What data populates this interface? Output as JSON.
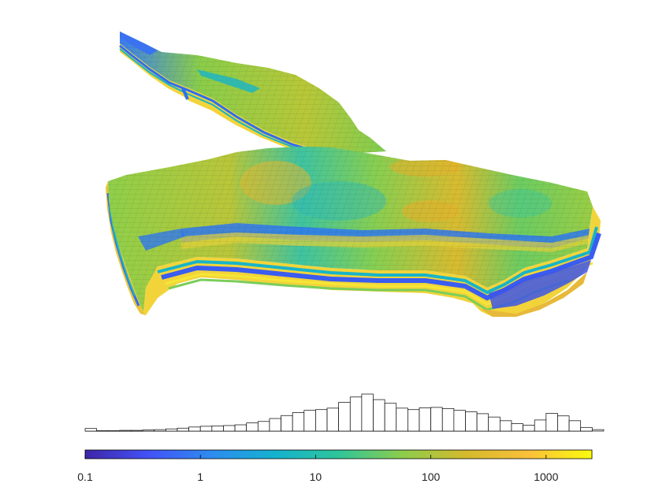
{
  "figure": {
    "description": "3D reservoir grid colored by permeability with histogram and log colorbar",
    "colormap": [
      "#3e26a8",
      "#4352f7",
      "#2d8cf0",
      "#14b2cf",
      "#2fc59a",
      "#8ccd4c",
      "#d4ba2c",
      "#fbc03a",
      "#f9fb0e"
    ],
    "outline_color": "#000000"
  },
  "chart_data": [
    {
      "type": "surface",
      "description": "3D corner-point reservoir model, cells colored by log-scale property value",
      "title": "",
      "xlabel": "",
      "ylabel": ""
    },
    {
      "type": "bar",
      "description": "Histogram of property values on log scale (relative bin heights)",
      "title": "",
      "xlabel": "",
      "ylabel": "",
      "xscale": "log",
      "xlim": [
        0.1,
        2500
      ],
      "ylim": [
        0,
        1
      ],
      "bin_edges_log10": [
        -1.0,
        -0.9,
        -0.8,
        -0.7,
        -0.6,
        -0.5,
        -0.4,
        -0.3,
        -0.2,
        -0.1,
        0.0,
        0.1,
        0.2,
        0.3,
        0.4,
        0.5,
        0.6,
        0.7,
        0.8,
        0.9,
        1.0,
        1.1,
        1.2,
        1.3,
        1.4,
        1.5,
        1.6,
        1.7,
        1.8,
        1.9,
        2.0,
        2.1,
        2.2,
        2.3,
        2.4,
        2.5,
        2.6,
        2.7,
        2.8,
        2.9,
        3.0,
        3.1,
        3.2,
        3.3,
        3.4
      ],
      "values": [
        0.07,
        0.01,
        0.01,
        0.02,
        0.02,
        0.03,
        0.04,
        0.06,
        0.08,
        0.11,
        0.13,
        0.14,
        0.15,
        0.17,
        0.22,
        0.26,
        0.34,
        0.42,
        0.5,
        0.56,
        0.58,
        0.62,
        0.78,
        0.92,
        1.0,
        0.85,
        0.75,
        0.62,
        0.58,
        0.63,
        0.64,
        0.61,
        0.56,
        0.52,
        0.47,
        0.38,
        0.28,
        0.2,
        0.16,
        0.3,
        0.48,
        0.41,
        0.28,
        0.1,
        0.04
      ]
    },
    {
      "type": "colorbar",
      "scale": "log",
      "range": [
        0.1,
        2500
      ],
      "ticks": [
        0.1,
        1,
        10,
        100,
        1000
      ],
      "tick_labels": [
        "0.1",
        "1",
        "10",
        "100",
        "1000"
      ]
    }
  ]
}
